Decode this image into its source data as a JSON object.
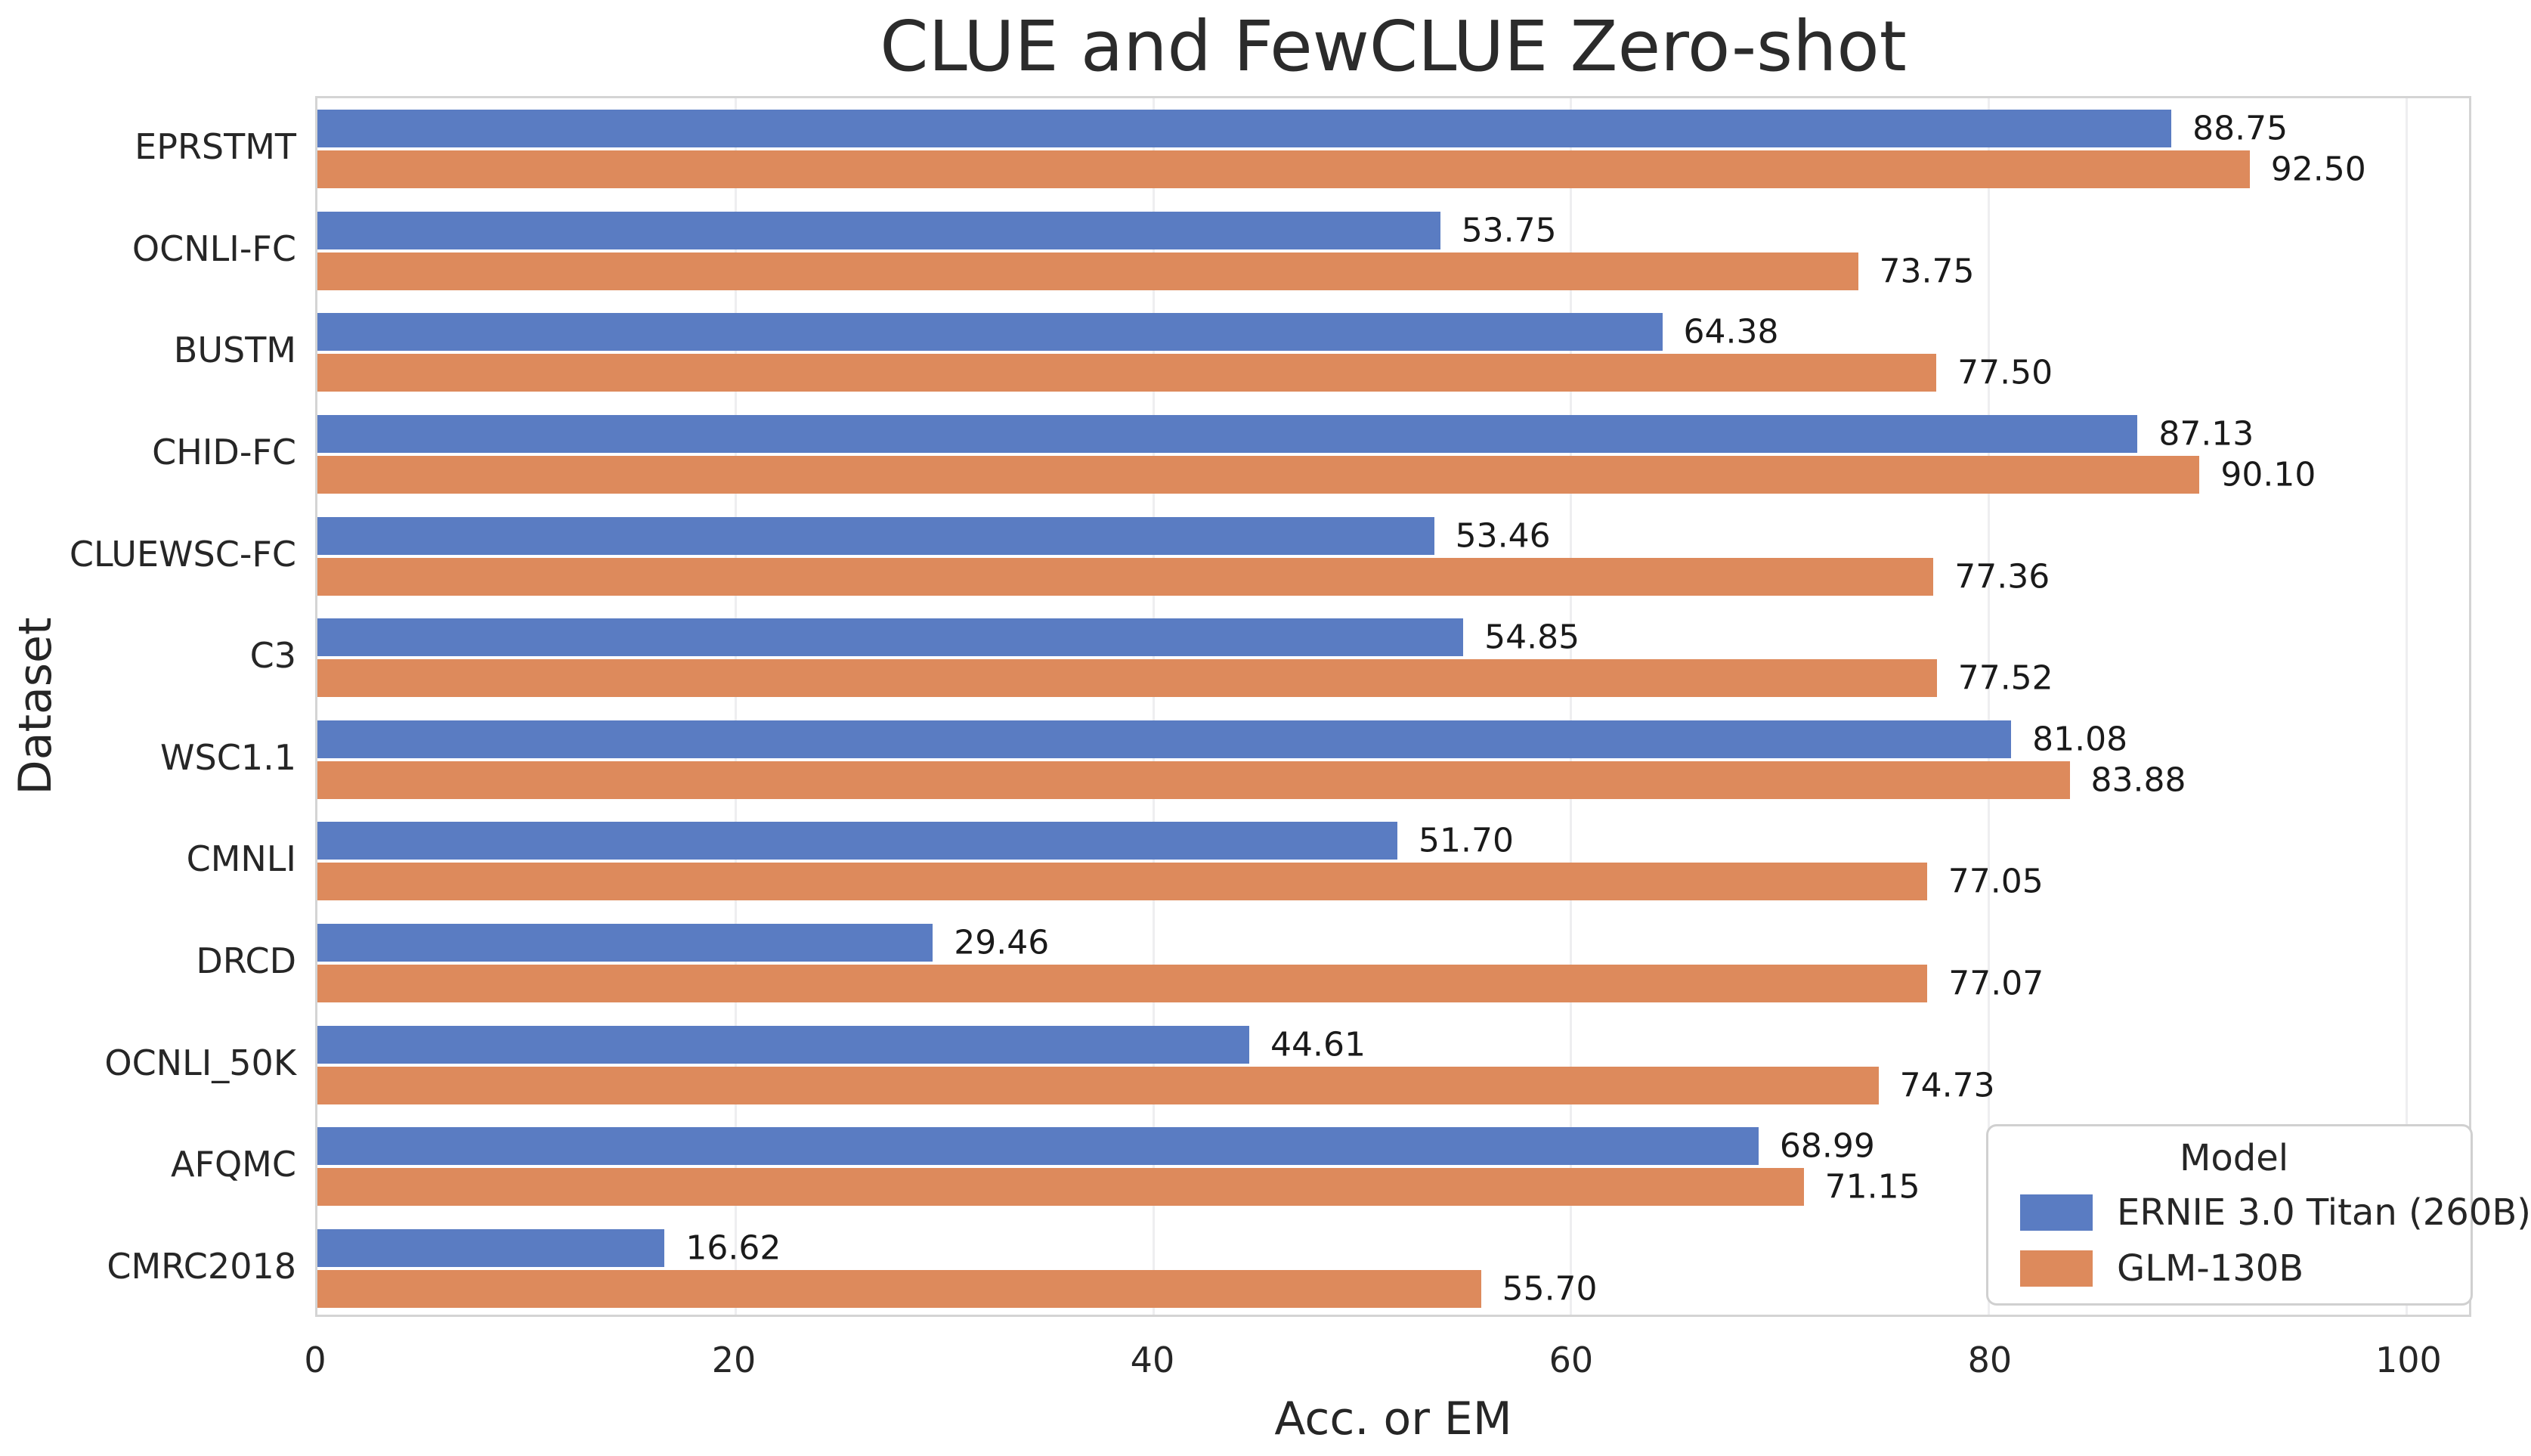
{
  "chart_data": {
    "type": "bar",
    "orientation": "horizontal",
    "title": "CLUE and FewCLUE Zero-shot",
    "xlabel": "Acc. or EM",
    "ylabel": "Dataset",
    "legend_title": "Model",
    "legend_position": "lower right",
    "grid": true,
    "xlim": [
      0,
      103
    ],
    "x_ticks": [
      0,
      20,
      40,
      60,
      80,
      100
    ],
    "categories": [
      "EPRSTMT",
      "OCNLI-FC",
      "BUSTM",
      "CHID-FC",
      "CLUEWSC-FC",
      "C3",
      "WSC1.1",
      "CMNLI",
      "DRCD",
      "OCNLI_50K",
      "AFQMC",
      "CMRC2018"
    ],
    "series": [
      {
        "name": "ERNIE 3.0 Titan (260B)",
        "color": "#5A7CC2",
        "values": [
          88.75,
          53.75,
          64.38,
          87.13,
          53.46,
          54.85,
          81.08,
          51.7,
          29.46,
          44.61,
          68.99,
          16.62
        ]
      },
      {
        "name": "GLM-130B",
        "color": "#DD8A5C",
        "values": [
          92.5,
          73.75,
          77.5,
          90.1,
          77.36,
          77.52,
          83.88,
          77.05,
          77.07,
          74.73,
          71.15,
          55.7
        ]
      }
    ]
  }
}
